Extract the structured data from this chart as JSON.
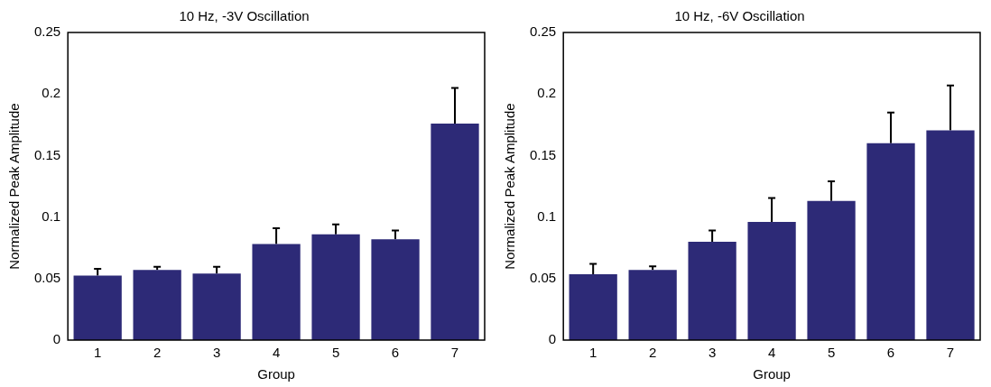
{
  "chart_data": [
    {
      "type": "bar",
      "title": "10 Hz, -3V Oscillation",
      "xlabel": "Group",
      "ylabel": "Normalized Peak Amplitude",
      "categories": [
        "1",
        "2",
        "3",
        "4",
        "5",
        "6",
        "7"
      ],
      "values": [
        0.0525,
        0.057,
        0.054,
        0.078,
        0.086,
        0.082,
        0.176
      ],
      "errors": [
        [
          0.0525,
          0.058
        ],
        [
          0.057,
          0.0595
        ],
        [
          0.054,
          0.0595
        ],
        [
          0.078,
          0.091
        ],
        [
          0.086,
          0.094
        ],
        [
          0.082,
          0.089
        ],
        [
          0.176,
          0.205
        ]
      ],
      "color": "#2d2a77",
      "ylim": [
        0,
        0.25
      ],
      "yticks": [
        0,
        0.05,
        0.1,
        0.15,
        0.2,
        0.25
      ],
      "grid": false
    },
    {
      "type": "bar",
      "title": "10 Hz, -6V Oscillation",
      "xlabel": "Group",
      "ylabel": "Normalized Peak Amplitude",
      "categories": [
        "1",
        "2",
        "3",
        "4",
        "5",
        "6",
        "7"
      ],
      "values": [
        0.0535,
        0.057,
        0.08,
        0.096,
        0.113,
        0.16,
        0.1705
      ],
      "errors": [
        [
          0.0535,
          0.062
        ],
        [
          0.057,
          0.06
        ],
        [
          0.08,
          0.089
        ],
        [
          0.096,
          0.1155
        ],
        [
          0.113,
          0.129
        ],
        [
          0.16,
          0.185
        ],
        [
          0.1705,
          0.207
        ]
      ],
      "color": "#2d2a77",
      "ylim": [
        0,
        0.25
      ],
      "yticks": [
        0,
        0.05,
        0.1,
        0.15,
        0.2,
        0.25
      ],
      "grid": false
    }
  ]
}
